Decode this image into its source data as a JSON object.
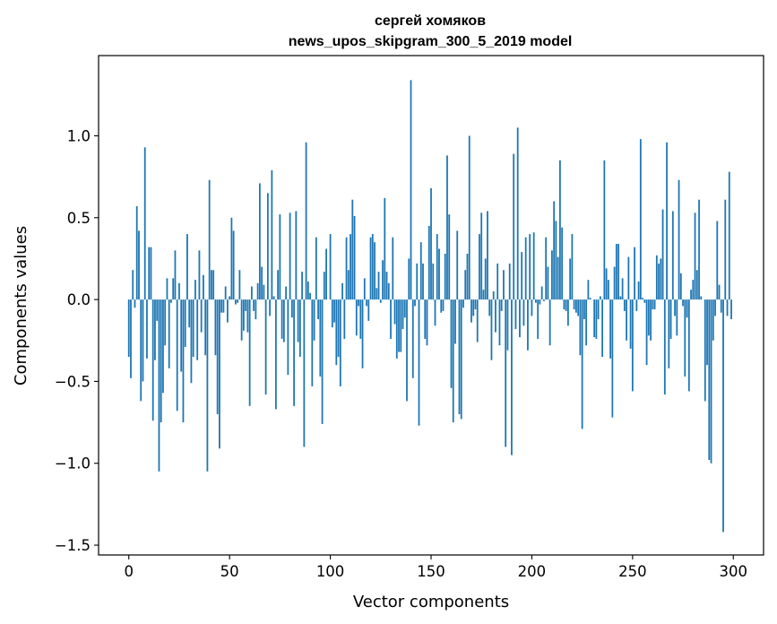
{
  "chart_data": {
    "type": "bar",
    "title_line1": "сергей хомяков",
    "title_line2": "news_upos_skipgram_300_5_2019 model",
    "xlabel": "Vector components",
    "ylabel": "Components values",
    "xlim": [
      -15,
      315
    ],
    "ylim": [
      -1.56,
      1.49
    ],
    "x_ticks": [
      0,
      50,
      100,
      150,
      200,
      250,
      300
    ],
    "x_tick_labels": [
      "0",
      "50",
      "100",
      "150",
      "200",
      "250",
      "300"
    ],
    "y_ticks": [
      -1.5,
      -1.0,
      -0.5,
      0.0,
      0.5,
      1.0
    ],
    "y_tick_labels": [
      "−1.5",
      "−1.0",
      "−0.5",
      "0.0",
      "0.5",
      "1.0"
    ],
    "bar_color": "#1f77b4",
    "values": [
      -0.35,
      -0.48,
      0.18,
      -0.05,
      0.57,
      0.42,
      -0.62,
      -0.5,
      0.93,
      -0.36,
      0.32,
      0.32,
      -0.74,
      -0.37,
      -0.13,
      -1.05,
      -0.75,
      -0.57,
      -0.28,
      0.13,
      -0.42,
      -0.02,
      0.13,
      0.3,
      -0.68,
      0.1,
      -0.44,
      -0.75,
      -0.29,
      0.4,
      -0.17,
      -0.51,
      -0.35,
      0.12,
      -0.37,
      0.3,
      -0.2,
      0.15,
      -0.34,
      -1.05,
      0.73,
      0.18,
      0.18,
      -0.34,
      -0.7,
      -0.91,
      -0.08,
      -0.08,
      0.08,
      -0.14,
      0.02,
      0.5,
      0.42,
      -0.03,
      -0.02,
      0.18,
      -0.25,
      -0.19,
      -0.07,
      -0.2,
      -0.65,
      0.08,
      -0.07,
      -0.12,
      0.1,
      0.71,
      0.2,
      0.09,
      -0.58,
      0.65,
      -0.1,
      0.79,
      0.02,
      -0.67,
      0.18,
      0.52,
      -0.24,
      -0.26,
      0.08,
      -0.46,
      0.53,
      -0.11,
      -0.65,
      0.54,
      -0.26,
      -0.35,
      0.17,
      -0.9,
      0.96,
      0.11,
      0.04,
      -0.53,
      -0.25,
      0.38,
      -0.12,
      -0.47,
      -0.76,
      0.17,
      0.31,
      0.0,
      0.4,
      -0.17,
      -0.14,
      -0.4,
      -0.35,
      -0.53,
      0.1,
      -0.24,
      0.38,
      0.18,
      0.4,
      0.61,
      0.51,
      -0.22,
      -0.04,
      -0.24,
      -0.42,
      0.13,
      -0.04,
      -0.13,
      0.38,
      0.4,
      0.35,
      0.07,
      0.17,
      -0.02,
      0.24,
      0.62,
      0.17,
      0.1,
      -0.24,
      0.38,
      -0.15,
      -0.36,
      -0.32,
      -0.32,
      -0.18,
      -0.11,
      -0.62,
      0.25,
      1.34,
      -0.48,
      -0.04,
      0.22,
      -0.77,
      0.35,
      0.22,
      -0.24,
      -0.28,
      0.45,
      0.68,
      0.22,
      -0.16,
      0.4,
      0.31,
      -0.08,
      -0.07,
      0.28,
      0.88,
      0.52,
      -0.54,
      -0.75,
      -0.27,
      0.42,
      -0.7,
      -0.73,
      -0.05,
      0.18,
      0.28,
      1.0,
      -0.14,
      -0.1,
      -0.06,
      -0.26,
      0.4,
      0.53,
      0.06,
      0.25,
      0.54,
      -0.1,
      -0.37,
      0.05,
      -0.2,
      0.22,
      -0.28,
      -0.07,
      0.18,
      -0.9,
      -0.31,
      0.22,
      -0.95,
      0.89,
      -0.18,
      1.05,
      -0.23,
      0.29,
      -0.16,
      0.38,
      -0.31,
      0.4,
      -0.1,
      0.41,
      -0.02,
      -0.24,
      -0.03,
      0.08,
      -0.01,
      0.38,
      0.2,
      -0.28,
      0.3,
      0.6,
      0.48,
      0.26,
      0.85,
      0.44,
      -0.06,
      -0.07,
      -0.16,
      0.25,
      0.4,
      -0.06,
      -0.08,
      -0.1,
      -0.34,
      -0.79,
      -0.12,
      -0.28,
      0.12,
      0.01,
      0.0,
      -0.23,
      -0.24,
      -0.12,
      0.02,
      -0.35,
      0.85,
      0.19,
      0.12,
      -0.36,
      -0.72,
      0.2,
      0.34,
      0.34,
      0.02,
      0.13,
      -0.07,
      -0.25,
      0.26,
      -0.3,
      -0.56,
      0.32,
      -0.07,
      0.11,
      0.98,
      0.01,
      -0.02,
      -0.4,
      -0.22,
      -0.25,
      -0.06,
      -0.06,
      0.27,
      0.22,
      0.25,
      0.55,
      -0.58,
      0.96,
      -0.42,
      -0.24,
      0.54,
      -0.1,
      -0.22,
      0.73,
      0.16,
      -0.04,
      -0.47,
      -0.11,
      -0.56,
      0.06,
      0.12,
      0.53,
      0.18,
      0.61,
      0.02,
      0.0,
      -0.62,
      -0.4,
      -0.98,
      -1.0,
      -0.25,
      -0.1,
      0.48,
      0.09,
      -0.08,
      -1.42,
      0.61,
      -0.1,
      0.78,
      -0.12
    ]
  }
}
